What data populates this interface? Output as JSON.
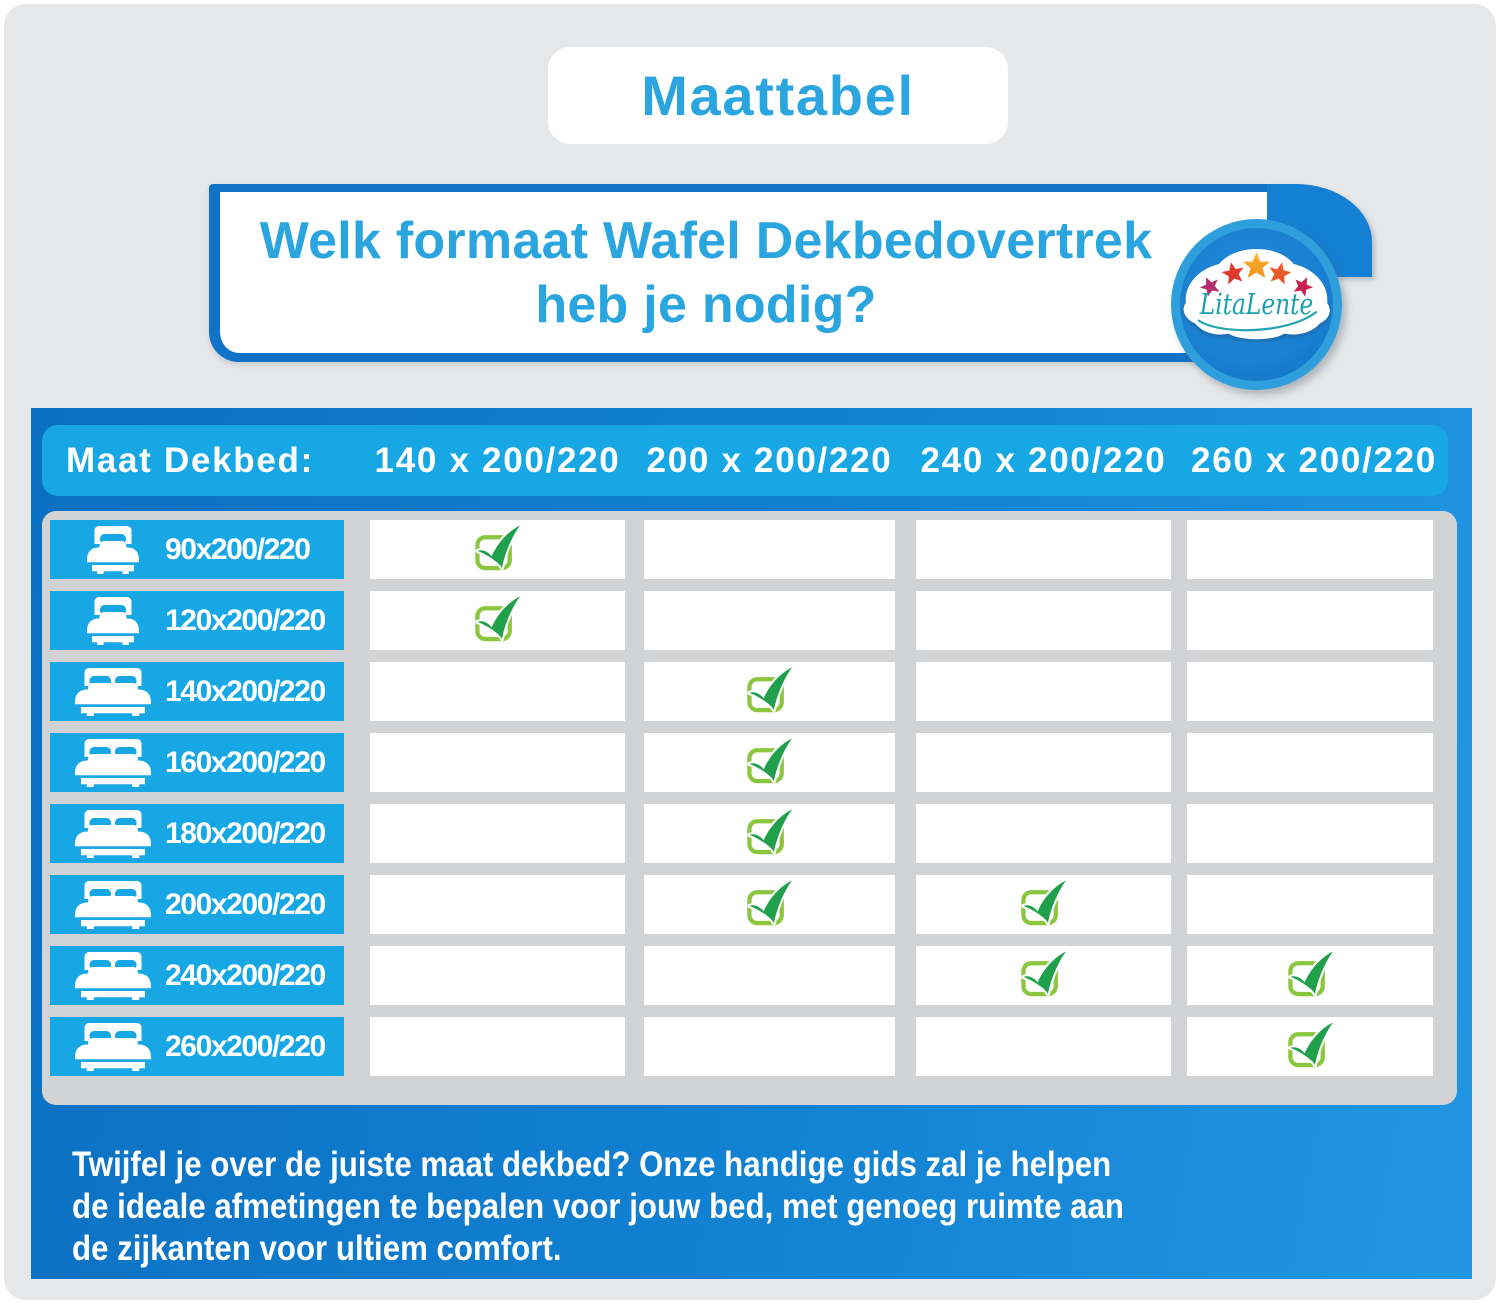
{
  "title": "Maattabel",
  "question": {
    "line1": "Welk formaat Wafel Dekbedovertrek",
    "line2": "heb je nodig?"
  },
  "logo": {
    "brand": "LitaLente",
    "stars_count": 5,
    "star_colors": [
      "#b72e6f",
      "#e03a2f",
      "#f9a61b",
      "#ea5a2d",
      "#c62350"
    ]
  },
  "table": {
    "corner_label": "Maat Dekbed:",
    "columns": [
      "140 x 200/220",
      "200 x 200/220",
      "240 x 200/220",
      "260 x 200/220"
    ],
    "rows": [
      {
        "label": "90x200/220",
        "bed_icon": "single",
        "checks": [
          true,
          false,
          false,
          false
        ]
      },
      {
        "label": "120x200/220",
        "bed_icon": "single",
        "checks": [
          true,
          false,
          false,
          false
        ]
      },
      {
        "label": "140x200/220",
        "bed_icon": "double",
        "checks": [
          false,
          true,
          false,
          false
        ]
      },
      {
        "label": "160x200/220",
        "bed_icon": "double",
        "checks": [
          false,
          true,
          false,
          false
        ]
      },
      {
        "label": "180x200/220",
        "bed_icon": "double",
        "checks": [
          false,
          true,
          false,
          false
        ]
      },
      {
        "label": "200x200/220",
        "bed_icon": "double",
        "checks": [
          false,
          true,
          true,
          false
        ]
      },
      {
        "label": "240x200/220",
        "bed_icon": "double",
        "checks": [
          false,
          false,
          true,
          true
        ]
      },
      {
        "label": "260x200/220",
        "bed_icon": "double",
        "checks": [
          false,
          false,
          false,
          true
        ]
      }
    ]
  },
  "footer": {
    "line1": "Twijfel je over de juiste maat dekbed? Onze handige gids zal je helpen",
    "line2": "de ideale afmetingen te bepalen voor jouw bed, met genoeg ruimte aan",
    "line3": "de zijkanten voor ultiem comfort."
  },
  "icons": {
    "row_icon_single": "bed-single-icon",
    "row_icon_double": "bed-double-icon",
    "cell_check": "check-icon",
    "logo": "logo-cloud-icon"
  },
  "colors": {
    "accent_blue_text": "#2ba5df",
    "frame_blue": "#1282d2",
    "light_blue": "#18a7e5",
    "check_green": "#21a04b",
    "check_box_green": "#8cc63e",
    "panel_gray": "#d2d3d5",
    "page_gray": "#e6e7e9",
    "script_teal": "#1b9fae"
  },
  "chart_data": {
    "type": "table",
    "title": "Maattabel",
    "corner_label": "Maat Dekbed:",
    "columns": [
      "140 x 200/220",
      "200 x 200/220",
      "240 x 200/220",
      "260 x 200/220"
    ],
    "row_labels": [
      "90x200/220",
      "120x200/220",
      "140x200/220",
      "160x200/220",
      "180x200/220",
      "200x200/220",
      "240x200/220",
      "260x200/220"
    ],
    "cells": [
      [
        1,
        0,
        0,
        0
      ],
      [
        1,
        0,
        0,
        0
      ],
      [
        0,
        1,
        0,
        0
      ],
      [
        0,
        1,
        0,
        0
      ],
      [
        0,
        1,
        0,
        0
      ],
      [
        0,
        1,
        1,
        0
      ],
      [
        0,
        0,
        1,
        1
      ],
      [
        0,
        0,
        0,
        1
      ]
    ],
    "legend": "1 = checkmark (fits), 0 = empty"
  }
}
